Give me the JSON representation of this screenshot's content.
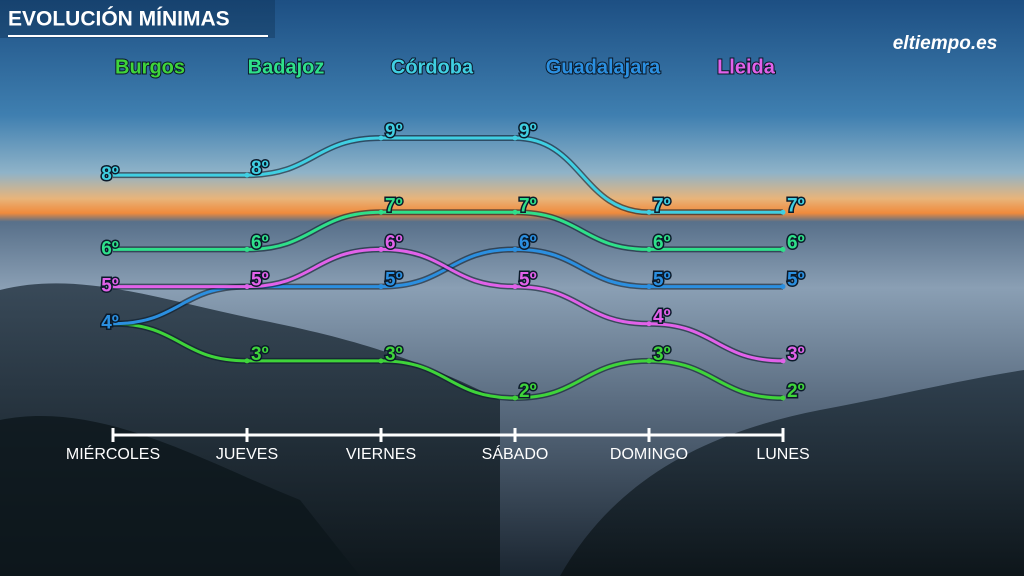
{
  "chart_data": {
    "type": "line",
    "title": "EVOLUCIÓN MÍNIMAS",
    "categories": [
      "MIÉRCOLES",
      "JUEVES",
      "VIERNES",
      "SÁBADO",
      "DOMINGO",
      "LUNES"
    ],
    "series": [
      {
        "name": "Burgos",
        "color": "#3fd43a",
        "values": [
          4,
          3,
          3,
          2,
          3,
          2
        ],
        "value_labels": [
          "4º",
          "3º",
          "3º",
          "2º",
          "3º",
          "2º"
        ]
      },
      {
        "name": "Badajoz",
        "color": "#2fe08a",
        "values": [
          6,
          6,
          7,
          7,
          6,
          6
        ],
        "value_labels": [
          "6º",
          "6º",
          "7º",
          "7º",
          "6º",
          "6º"
        ]
      },
      {
        "name": "Córdoba",
        "color": "#40cfe2",
        "values": [
          8,
          8,
          9,
          9,
          7,
          7
        ],
        "value_labels": [
          "8º",
          "8º",
          "9º",
          "9º",
          "7º",
          "7º"
        ]
      },
      {
        "name": "Guadalajara",
        "color": "#2b8fe0",
        "values": [
          4,
          5,
          5,
          6,
          5,
          5
        ],
        "value_labels": [
          "4º",
          "5º",
          "5º",
          "6º",
          "5º",
          "5º"
        ]
      },
      {
        "name": "Lleida",
        "color": "#e262ea",
        "values": [
          5,
          5,
          6,
          5,
          4,
          3
        ],
        "value_labels": [
          "5º",
          "5º",
          "6º",
          "5º",
          "4º",
          "3º"
        ]
      }
    ]
  },
  "logo": "eltiempo.es"
}
